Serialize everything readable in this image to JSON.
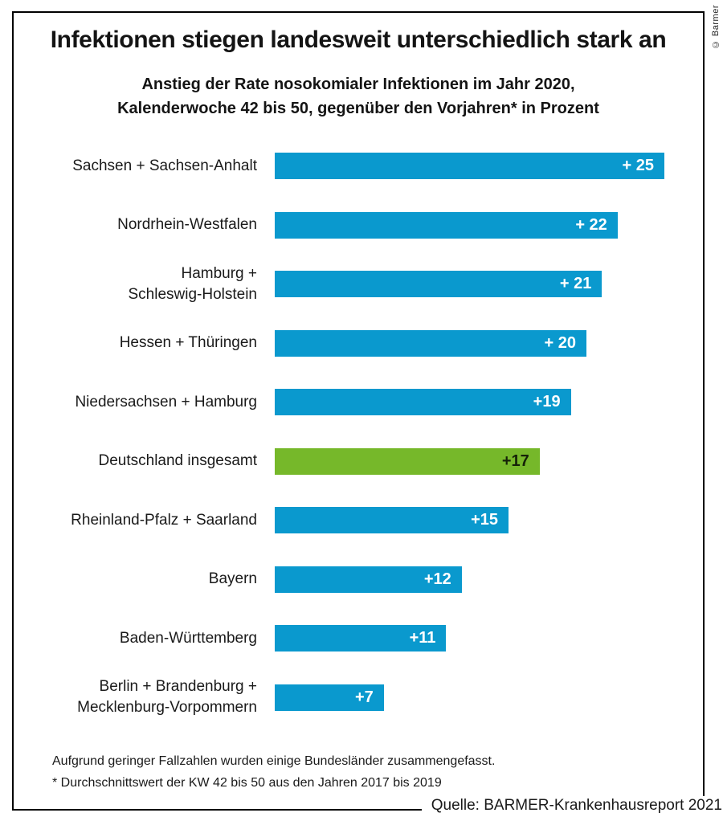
{
  "credit": "© Barmer",
  "header": {
    "title": "Infektionen stiegen landesweit unterschiedlich stark an",
    "subtitle_line1": "Anstieg der Rate nosokomialer Infektionen im Jahr 2020,",
    "subtitle_line2": "Kalenderwoche 42 bis 50, gegenüber den Vorjahren* in Prozent"
  },
  "footnotes": {
    "line1": "Aufgrund geringer Fallzahlen wurden einige Bundesländer zusammengefasst.",
    "line2": "* Durchschnittswert der KW 42 bis 50 aus den Jahren 2017 bis 2019"
  },
  "source": "Quelle: BARMER-Krankenhausreport 2021",
  "colors": {
    "bar_blue": "#0a99ce",
    "bar_green": "#76b82a",
    "value_text_on_blue": "#ffffff",
    "value_text_on_green": "#152208",
    "frame_border": "#000000",
    "text": "#1a1a1a"
  },
  "chart_data": {
    "type": "bar",
    "orientation": "horizontal",
    "title": "Infektionen stiegen landesweit unterschiedlich stark an",
    "subtitle": "Anstieg der Rate nosokomialer Infektionen im Jahr 2020, Kalenderwoche 42 bis 50, gegenüber den Vorjahren* in Prozent",
    "unit": "percent",
    "xlim": [
      0,
      25
    ],
    "grid": false,
    "legend": false,
    "highlight_index": 5,
    "categories": [
      "Sachsen + Sachsen-Anhalt",
      "Nordrhein-Westfalen",
      "Hamburg + Schleswig-Holstein",
      "Hessen + Thüringen",
      "Niedersachsen + Hamburg",
      "Deutschland insgesamt",
      "Rheinland-Pfalz + Saarland",
      "Bayern",
      "Baden-Württemberg",
      "Berlin + Brandenburg + Mecklenburg-Vorpommern"
    ],
    "values": [
      25,
      22,
      21,
      20,
      19,
      17,
      15,
      12,
      11,
      7
    ],
    "rows": [
      {
        "label_lines": [
          "Sachsen + Sachsen-Anhalt"
        ],
        "value": 25,
        "value_label": "+ 25",
        "highlight": false
      },
      {
        "label_lines": [
          "Nordrhein-Westfalen"
        ],
        "value": 22,
        "value_label": "+ 22",
        "highlight": false
      },
      {
        "label_lines": [
          "Hamburg +",
          "Schleswig-Holstein"
        ],
        "value": 21,
        "value_label": "+ 21",
        "highlight": false
      },
      {
        "label_lines": [
          "Hessen + Thüringen"
        ],
        "value": 20,
        "value_label": "+ 20",
        "highlight": false
      },
      {
        "label_lines": [
          "Niedersachsen + Hamburg"
        ],
        "value": 19,
        "value_label": "+19",
        "highlight": false
      },
      {
        "label_lines": [
          "Deutschland insgesamt"
        ],
        "value": 17,
        "value_label": "+17",
        "highlight": true
      },
      {
        "label_lines": [
          "Rheinland-Pfalz + Saarland"
        ],
        "value": 15,
        "value_label": "+15",
        "highlight": false
      },
      {
        "label_lines": [
          "Bayern"
        ],
        "value": 12,
        "value_label": "+12",
        "highlight": false
      },
      {
        "label_lines": [
          "Baden-Württemberg"
        ],
        "value": 11,
        "value_label": "+11",
        "highlight": false
      },
      {
        "label_lines": [
          "Berlin + Brandenburg +",
          "Mecklenburg-Vorpommern"
        ],
        "value": 7,
        "value_label": "+7",
        "highlight": false
      }
    ]
  }
}
